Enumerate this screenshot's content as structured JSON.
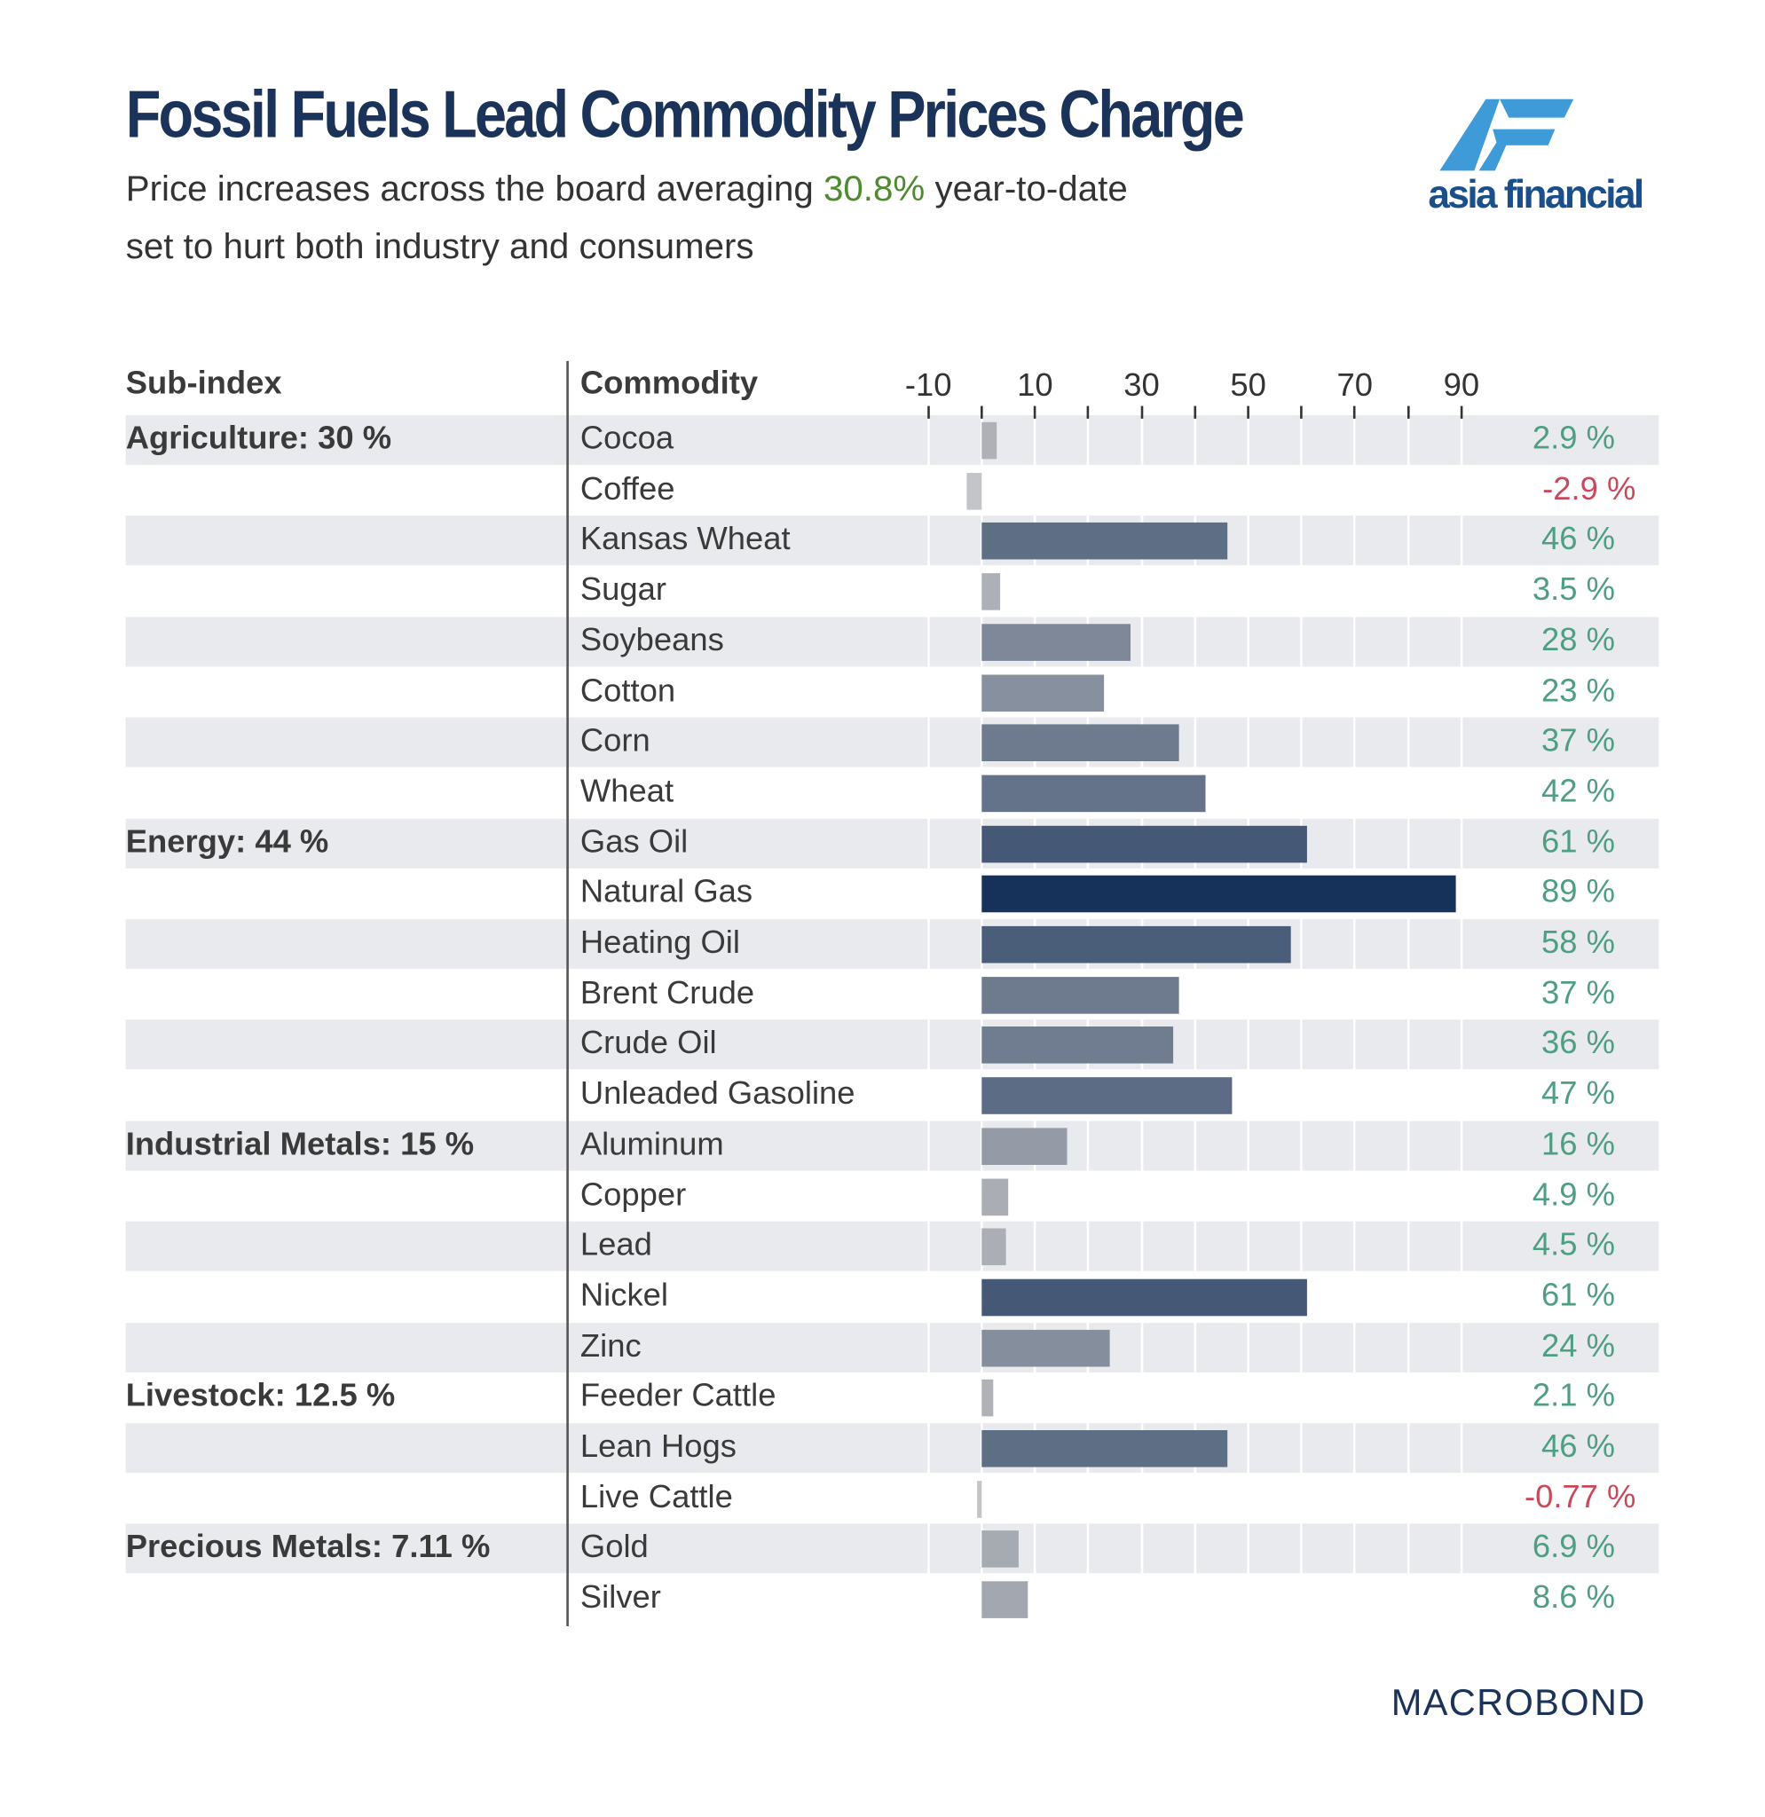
{
  "header": {
    "title": "Fossil Fuels Lead Commodity Prices Charge",
    "subtitle_line1_pre": "Price increases across the board averaging ",
    "subtitle_highlight": "30.8%",
    "subtitle_line1_post": " year-to-date",
    "subtitle_line2": "set to hurt both industry and consumers",
    "logo_text": "asia financial"
  },
  "colors": {
    "title": "#1b3358",
    "highlight": "#4e8a2e",
    "positive": "#4e9e82",
    "negative": "#c9495a",
    "bar_low": "#b6b7bb",
    "bar_high": "#17325a",
    "row_band": "#e9eaed"
  },
  "chart_data": {
    "type": "bar",
    "orientation": "horizontal",
    "column_headers": {
      "subindex": "Sub-index",
      "commodity": "Commodity"
    },
    "x_ticks": [
      -10,
      10,
      30,
      50,
      70,
      90
    ],
    "xlim": [
      -10,
      90
    ],
    "unit": "%",
    "groups": [
      {
        "label": "Agriculture: 30 %",
        "start": 0
      },
      {
        "label": "Energy: 44 %",
        "start": 8
      },
      {
        "label": "Industrial Metals: 15 %",
        "start": 14
      },
      {
        "label": "Livestock: 12.5 %",
        "start": 19
      },
      {
        "label": "Precious Metals: 7.11 %",
        "start": 22
      }
    ],
    "rows": [
      {
        "commodity": "Cocoa",
        "value": 2.9,
        "label": "2.9 %"
      },
      {
        "commodity": "Coffee",
        "value": -2.9,
        "label": "-2.9 %"
      },
      {
        "commodity": "Kansas Wheat",
        "value": 46,
        "label": "46 %"
      },
      {
        "commodity": "Sugar",
        "value": 3.5,
        "label": "3.5 %"
      },
      {
        "commodity": "Soybeans",
        "value": 28,
        "label": "28 %"
      },
      {
        "commodity": "Cotton",
        "value": 23,
        "label": "23 %"
      },
      {
        "commodity": "Corn",
        "value": 37,
        "label": "37 %"
      },
      {
        "commodity": "Wheat",
        "value": 42,
        "label": "42 %"
      },
      {
        "commodity": "Gas Oil",
        "value": 61,
        "label": "61 %"
      },
      {
        "commodity": "Natural Gas",
        "value": 89,
        "label": "89 %"
      },
      {
        "commodity": "Heating Oil",
        "value": 58,
        "label": "58 %"
      },
      {
        "commodity": "Brent Crude",
        "value": 37,
        "label": "37 %"
      },
      {
        "commodity": "Crude Oil",
        "value": 36,
        "label": "36 %"
      },
      {
        "commodity": "Unleaded Gasoline",
        "value": 47,
        "label": "47 %"
      },
      {
        "commodity": "Aluminum",
        "value": 16,
        "label": "16 %"
      },
      {
        "commodity": "Copper",
        "value": 4.9,
        "label": "4.9 %"
      },
      {
        "commodity": "Lead",
        "value": 4.5,
        "label": "4.5 %"
      },
      {
        "commodity": "Nickel",
        "value": 61,
        "label": "61 %"
      },
      {
        "commodity": "Zinc",
        "value": 24,
        "label": "24 %"
      },
      {
        "commodity": "Feeder Cattle",
        "value": 2.1,
        "label": "2.1 %"
      },
      {
        "commodity": "Lean Hogs",
        "value": 46,
        "label": "46 %"
      },
      {
        "commodity": "Live Cattle",
        "value": -0.77,
        "label": "-0.77 %"
      },
      {
        "commodity": "Gold",
        "value": 6.9,
        "label": "6.9 %"
      },
      {
        "commodity": "Silver",
        "value": 8.6,
        "label": "8.6 %"
      }
    ]
  },
  "footer": {
    "source_logo": "MACROBOND"
  }
}
